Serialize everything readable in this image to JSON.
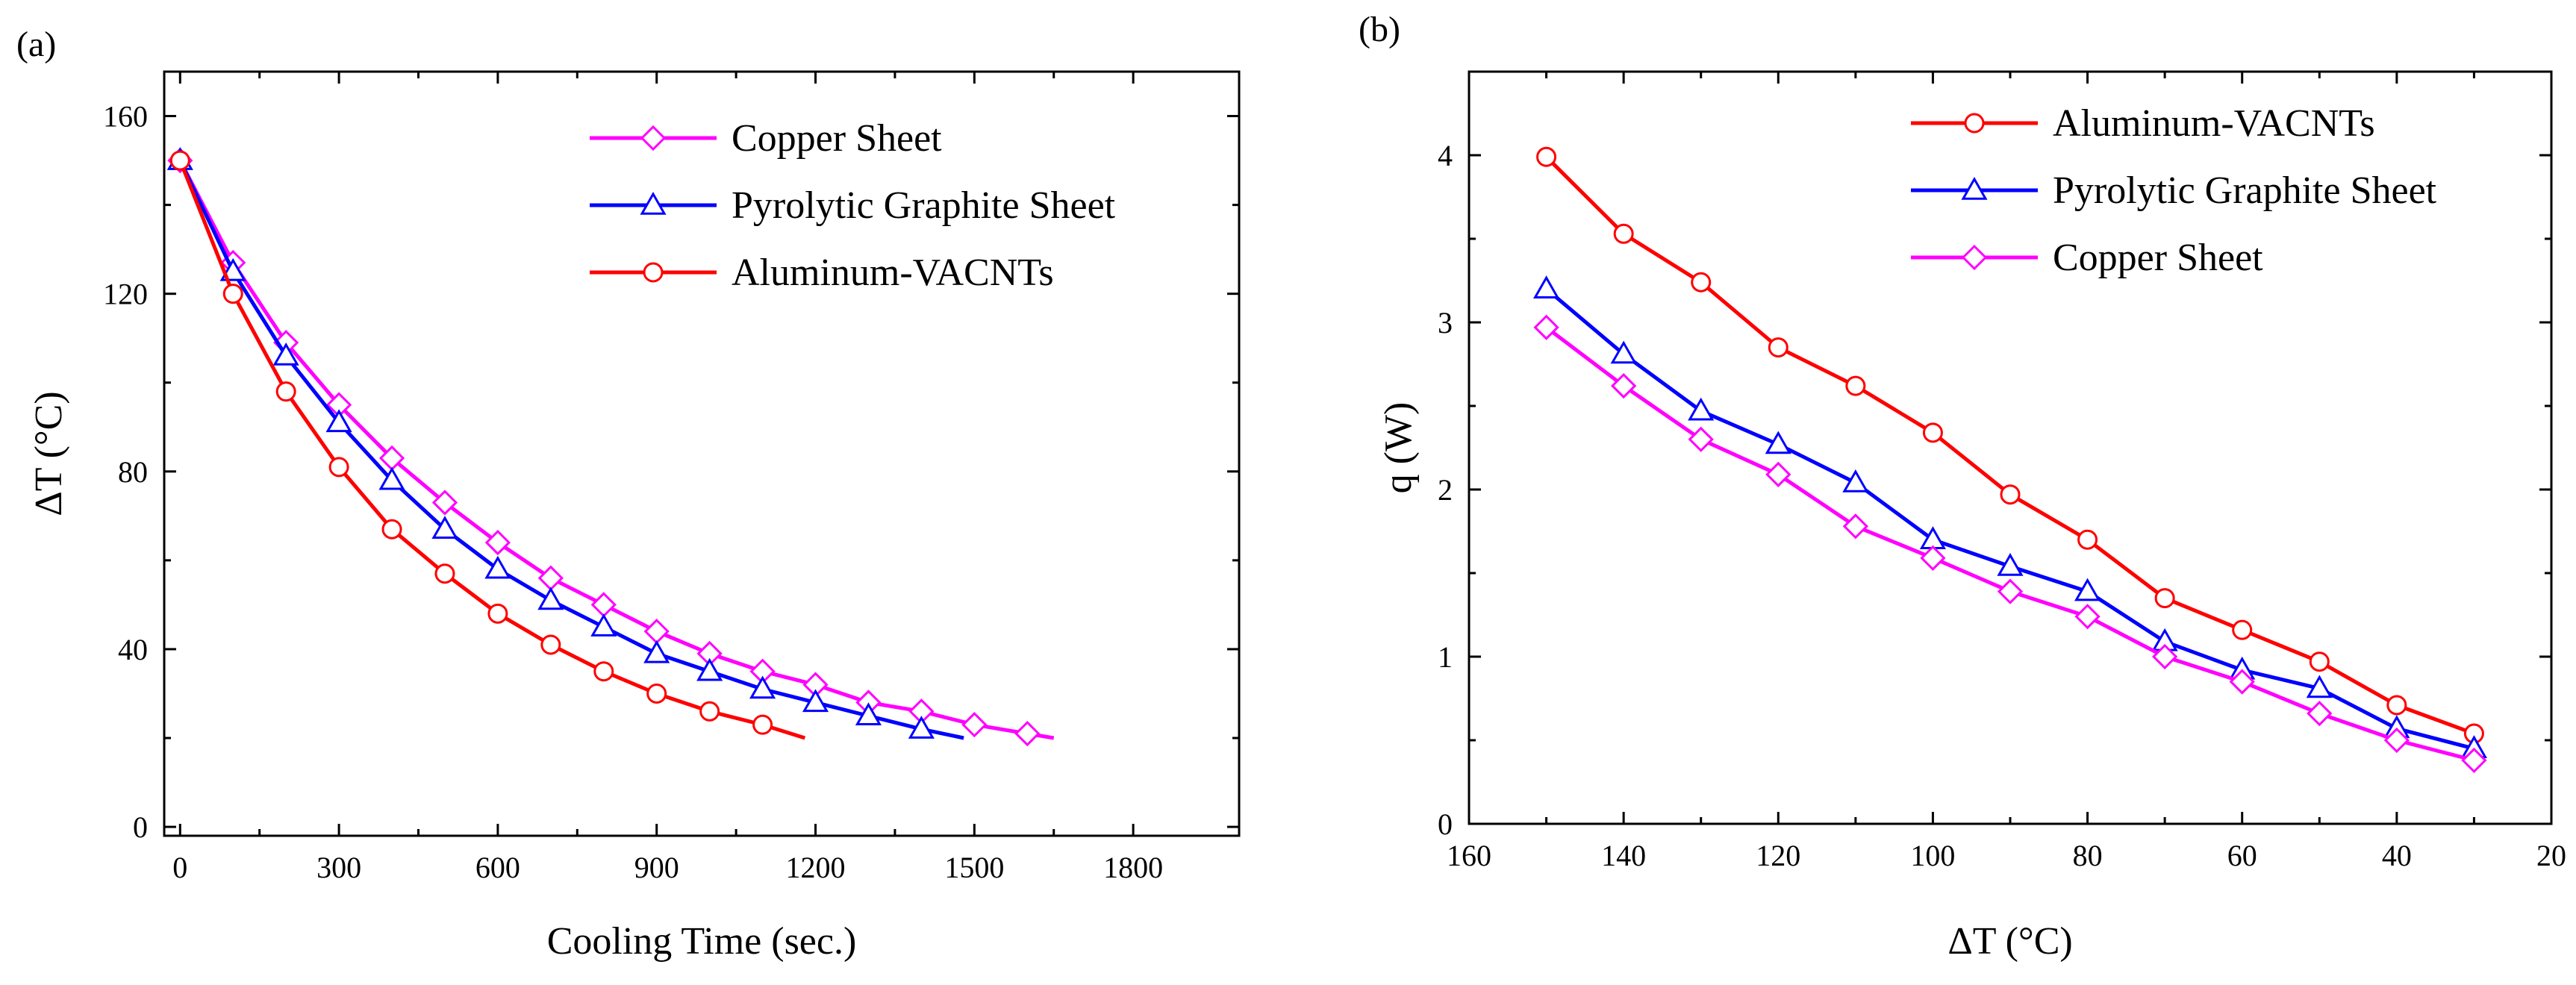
{
  "chart_data": [
    {
      "panel": "(a)",
      "type": "line",
      "xlabel": "Cooling Time (sec.)",
      "ylabel": "ΔT (°C)",
      "xlim": [
        -30,
        2000
      ],
      "ylim": [
        -2,
        170
      ],
      "xticks": [
        0,
        300,
        600,
        900,
        1200,
        1500,
        1800
      ],
      "yticks": [
        0,
        40,
        80,
        120,
        160
      ],
      "legend_position": "top-right",
      "series": [
        {
          "name": "Copper Sheet",
          "color": "#ff00ff",
          "marker": "diamond",
          "line_x": [
            0,
            100,
            200,
            300,
            400,
            500,
            600,
            700,
            800,
            900,
            1000,
            1100,
            1200,
            1300,
            1400,
            1500,
            1600,
            1650
          ],
          "line_y": [
            150,
            127,
            109,
            95,
            83,
            73,
            64,
            56,
            50,
            44,
            39,
            35,
            32,
            28,
            26,
            23,
            21,
            20
          ],
          "marker_x": [
            0,
            100,
            200,
            300,
            400,
            500,
            600,
            700,
            800,
            900,
            1000,
            1100,
            1200,
            1300,
            1400,
            1500,
            1600
          ],
          "marker_y": [
            150,
            127,
            109,
            95,
            83,
            73,
            64,
            56,
            50,
            44,
            39,
            35,
            32,
            28,
            26,
            23,
            21
          ]
        },
        {
          "name": "Pyrolytic Graphite Sheet",
          "color": "#0000ff",
          "marker": "triangle",
          "line_x": [
            0,
            100,
            200,
            300,
            400,
            500,
            600,
            700,
            800,
            900,
            1000,
            1100,
            1200,
            1300,
            1400,
            1480
          ],
          "line_y": [
            150,
            125,
            106,
            91,
            78,
            67,
            58,
            51,
            45,
            39,
            35,
            31,
            28,
            25,
            22,
            20
          ],
          "marker_x": [
            0,
            100,
            200,
            300,
            400,
            500,
            600,
            700,
            800,
            900,
            1000,
            1100,
            1200,
            1300,
            1400
          ],
          "marker_y": [
            150,
            125,
            106,
            91,
            78,
            67,
            58,
            51,
            45,
            39,
            35,
            31,
            28,
            25,
            22
          ]
        },
        {
          "name": "Aluminum-VACNTs",
          "color": "#ff0000",
          "marker": "circle",
          "line_x": [
            0,
            100,
            200,
            300,
            400,
            500,
            600,
            700,
            800,
            900,
            1000,
            1100,
            1180
          ],
          "line_y": [
            150,
            120,
            98,
            81,
            67,
            57,
            48,
            41,
            35,
            30,
            26,
            23,
            20
          ],
          "marker_x": [
            0,
            100,
            200,
            300,
            400,
            500,
            600,
            700,
            800,
            900,
            1000,
            1100
          ],
          "marker_y": [
            150,
            120,
            98,
            81,
            67,
            57,
            48,
            41,
            35,
            30,
            26,
            23
          ]
        }
      ]
    },
    {
      "panel": "(b)",
      "type": "line",
      "xlabel": "ΔT (°C)",
      "ylabel": "q (W)",
      "xlim": [
        160,
        20
      ],
      "ylim": [
        0,
        4.5
      ],
      "xticks": [
        160,
        140,
        120,
        100,
        80,
        60,
        40,
        20
      ],
      "yticks": [
        0,
        1,
        2,
        3,
        4
      ],
      "legend_position": "top-right",
      "series": [
        {
          "name": "Aluminum-VACNTs",
          "color": "#ff0000",
          "marker": "circle",
          "x": [
            150,
            140,
            130,
            120,
            110,
            100,
            90,
            80,
            70,
            60,
            50,
            40,
            30
          ],
          "y": [
            3.99,
            3.53,
            3.24,
            2.85,
            2.62,
            2.34,
            1.97,
            1.7,
            1.35,
            1.16,
            0.97,
            0.71,
            0.54
          ]
        },
        {
          "name": "Pyrolytic Graphite Sheet",
          "color": "#0000ff",
          "marker": "triangle",
          "x": [
            150,
            140,
            130,
            120,
            110,
            100,
            90,
            80,
            70,
            60,
            50,
            40,
            30
          ],
          "y": [
            3.2,
            2.81,
            2.47,
            2.27,
            2.04,
            1.7,
            1.54,
            1.39,
            1.09,
            0.92,
            0.81,
            0.57,
            0.45
          ]
        },
        {
          "name": "Copper Sheet",
          "color": "#ff00ff",
          "marker": "diamond",
          "x": [
            150,
            140,
            130,
            120,
            110,
            100,
            90,
            80,
            70,
            60,
            50,
            40,
            30
          ],
          "y": [
            2.97,
            2.62,
            2.3,
            2.09,
            1.78,
            1.59,
            1.39,
            1.24,
            1.0,
            0.85,
            0.66,
            0.5,
            0.38
          ]
        }
      ]
    }
  ]
}
